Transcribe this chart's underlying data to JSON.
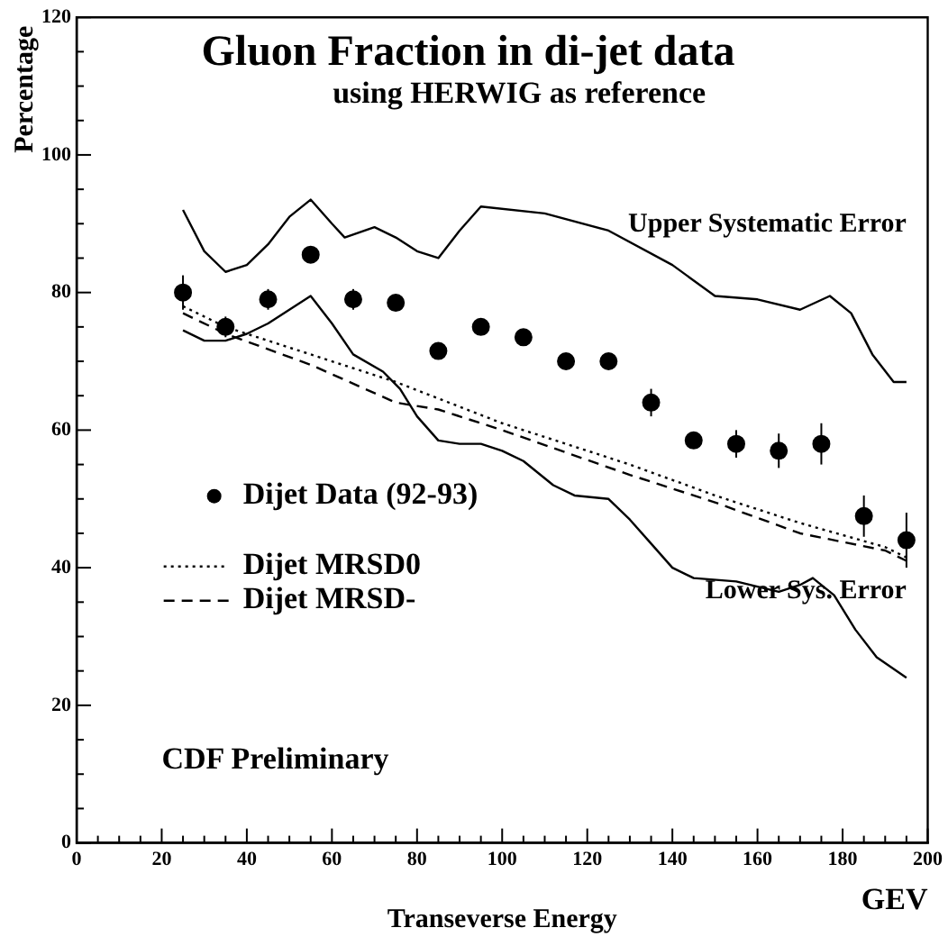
{
  "chart_data": {
    "type": "scatter",
    "title": "Gluon Fraction in di-jet data",
    "subtitle": "using HERWIG as reference",
    "xlabel": "Transeverse Energy",
    "ylabel": "Percentage",
    "xlim": [
      0,
      200
    ],
    "ylim": [
      0,
      120
    ],
    "xticks": [
      0,
      {
        "value": 5,
        "label": null
      },
      {
        "value": 10,
        "label": null
      },
      {
        "value": 15,
        "label": null
      },
      20,
      {
        "value": 25,
        "label": null
      },
      {
        "value": 30,
        "label": null
      },
      {
        "value": 35,
        "label": null
      },
      40,
      {
        "value": 45,
        "label": null
      },
      {
        "value": 50,
        "label": null
      },
      {
        "value": 55,
        "label": null
      },
      60,
      {
        "value": 65,
        "label": null
      },
      {
        "value": 70,
        "label": null
      },
      {
        "value": 75,
        "label": null
      },
      80,
      {
        "value": 85,
        "label": null
      },
      {
        "value": 90,
        "label": null
      },
      {
        "value": 95,
        "label": null
      },
      100,
      {
        "value": 105,
        "label": null
      },
      {
        "value": 110,
        "label": null
      },
      {
        "value": 115,
        "label": null
      },
      120,
      {
        "value": 125,
        "label": null
      },
      {
        "value": 130,
        "label": null
      },
      {
        "value": 135,
        "label": null
      },
      140,
      {
        "value": 145,
        "label": null
      },
      {
        "value": 150,
        "label": null
      },
      {
        "value": 155,
        "label": null
      },
      160,
      {
        "value": 165,
        "label": null
      },
      {
        "value": 170,
        "label": null
      },
      {
        "value": 175,
        "label": null
      },
      180,
      {
        "value": 185,
        "label": null
      },
      {
        "value": 190,
        "label": null
      },
      {
        "value": 195,
        "label": null
      },
      200
    ],
    "yticks": [
      0,
      {
        "value": 5,
        "label": null
      },
      {
        "value": 10,
        "label": null
      },
      {
        "value": 15,
        "label": null
      },
      20,
      {
        "value": 25,
        "label": null
      },
      {
        "value": 30,
        "label": null
      },
      {
        "value": 35,
        "label": null
      },
      40,
      {
        "value": 45,
        "label": null
      },
      {
        "value": 50,
        "label": null
      },
      {
        "value": 55,
        "label": null
      },
      60,
      {
        "value": 65,
        "label": null
      },
      {
        "value": 70,
        "label": null
      },
      {
        "value": 75,
        "label": null
      },
      80,
      {
        "value": 85,
        "label": null
      },
      {
        "value": 90,
        "label": null
      },
      {
        "value": 95,
        "label": null
      },
      100,
      {
        "value": 105,
        "label": null
      },
      {
        "value": 110,
        "label": null
      },
      {
        "value": 115,
        "label": null
      },
      120
    ],
    "grid": false,
    "legend": "left",
    "series": [
      {
        "name": "Dijet Data (92-93)",
        "type": "scatter",
        "marker": "circle",
        "color": "#000000",
        "x": [
          25,
          35,
          45,
          55,
          65,
          75,
          85,
          95,
          105,
          115,
          125,
          135,
          145,
          155,
          165,
          175,
          185,
          195
        ],
        "values": [
          80,
          75,
          79,
          85.5,
          79,
          78.5,
          71.5,
          75,
          73.5,
          70,
          70,
          64,
          58.5,
          58,
          57,
          58,
          47.5,
          44
        ],
        "errors": [
          2.5,
          1.5,
          1.5,
          1,
          1.5,
          1,
          1,
          1,
          1,
          1,
          1,
          2,
          1,
          2,
          2.5,
          3,
          3,
          4
        ]
      },
      {
        "name": "Dijet MRSD0",
        "type": "line",
        "line_style": "dotted",
        "color": "#000000",
        "x": [
          25,
          35,
          55,
          75,
          100,
          130,
          150,
          170,
          190,
          195
        ],
        "values": [
          78,
          75,
          71,
          67,
          61,
          55,
          50.5,
          46.5,
          43,
          41.5
        ]
      },
      {
        "name": "Dijet MRSD-",
        "type": "line",
        "line_style": "dashed",
        "color": "#000000",
        "x": [
          25,
          35,
          55,
          75,
          85,
          100,
          130,
          150,
          170,
          190,
          195
        ],
        "values": [
          77,
          74,
          69.5,
          64,
          63,
          60,
          53.5,
          49.5,
          45,
          42.5,
          41
        ]
      },
      {
        "name": "Upper Systematic Error",
        "type": "line",
        "line_style": "solid",
        "color": "#000000",
        "x": [
          25,
          30,
          35,
          40,
          45,
          50,
          55,
          60,
          63,
          70,
          75,
          80,
          85,
          90,
          95,
          110,
          125,
          140,
          150,
          160,
          170,
          177,
          182,
          187,
          192,
          195
        ],
        "values": [
          92,
          86,
          83,
          84,
          87,
          91,
          93.5,
          90,
          88,
          89.5,
          88,
          86,
          85,
          89,
          92.5,
          91.5,
          89,
          84,
          79.5,
          79,
          77.5,
          79.5,
          77,
          71,
          67,
          67
        ]
      },
      {
        "name": "Lower Sys. Error",
        "type": "line",
        "line_style": "solid",
        "color": "#000000",
        "x": [
          25,
          30,
          35,
          40,
          45,
          50,
          55,
          60,
          65,
          72,
          76,
          80,
          85,
          90,
          95,
          100,
          105,
          112,
          117,
          125,
          130,
          135,
          140,
          145,
          155,
          165,
          170,
          173,
          178,
          183,
          188,
          195
        ],
        "values": [
          74.5,
          73,
          73,
          74,
          75.5,
          77.5,
          79.5,
          75.5,
          71,
          68.5,
          66,
          62,
          58.5,
          58,
          58,
          57,
          55.5,
          52,
          50.5,
          50,
          47,
          43.5,
          40,
          38.5,
          38,
          36.5,
          37.5,
          38.5,
          36,
          31,
          27,
          24
        ]
      }
    ],
    "annotations": [
      "CDF Preliminary",
      "GEV"
    ]
  }
}
